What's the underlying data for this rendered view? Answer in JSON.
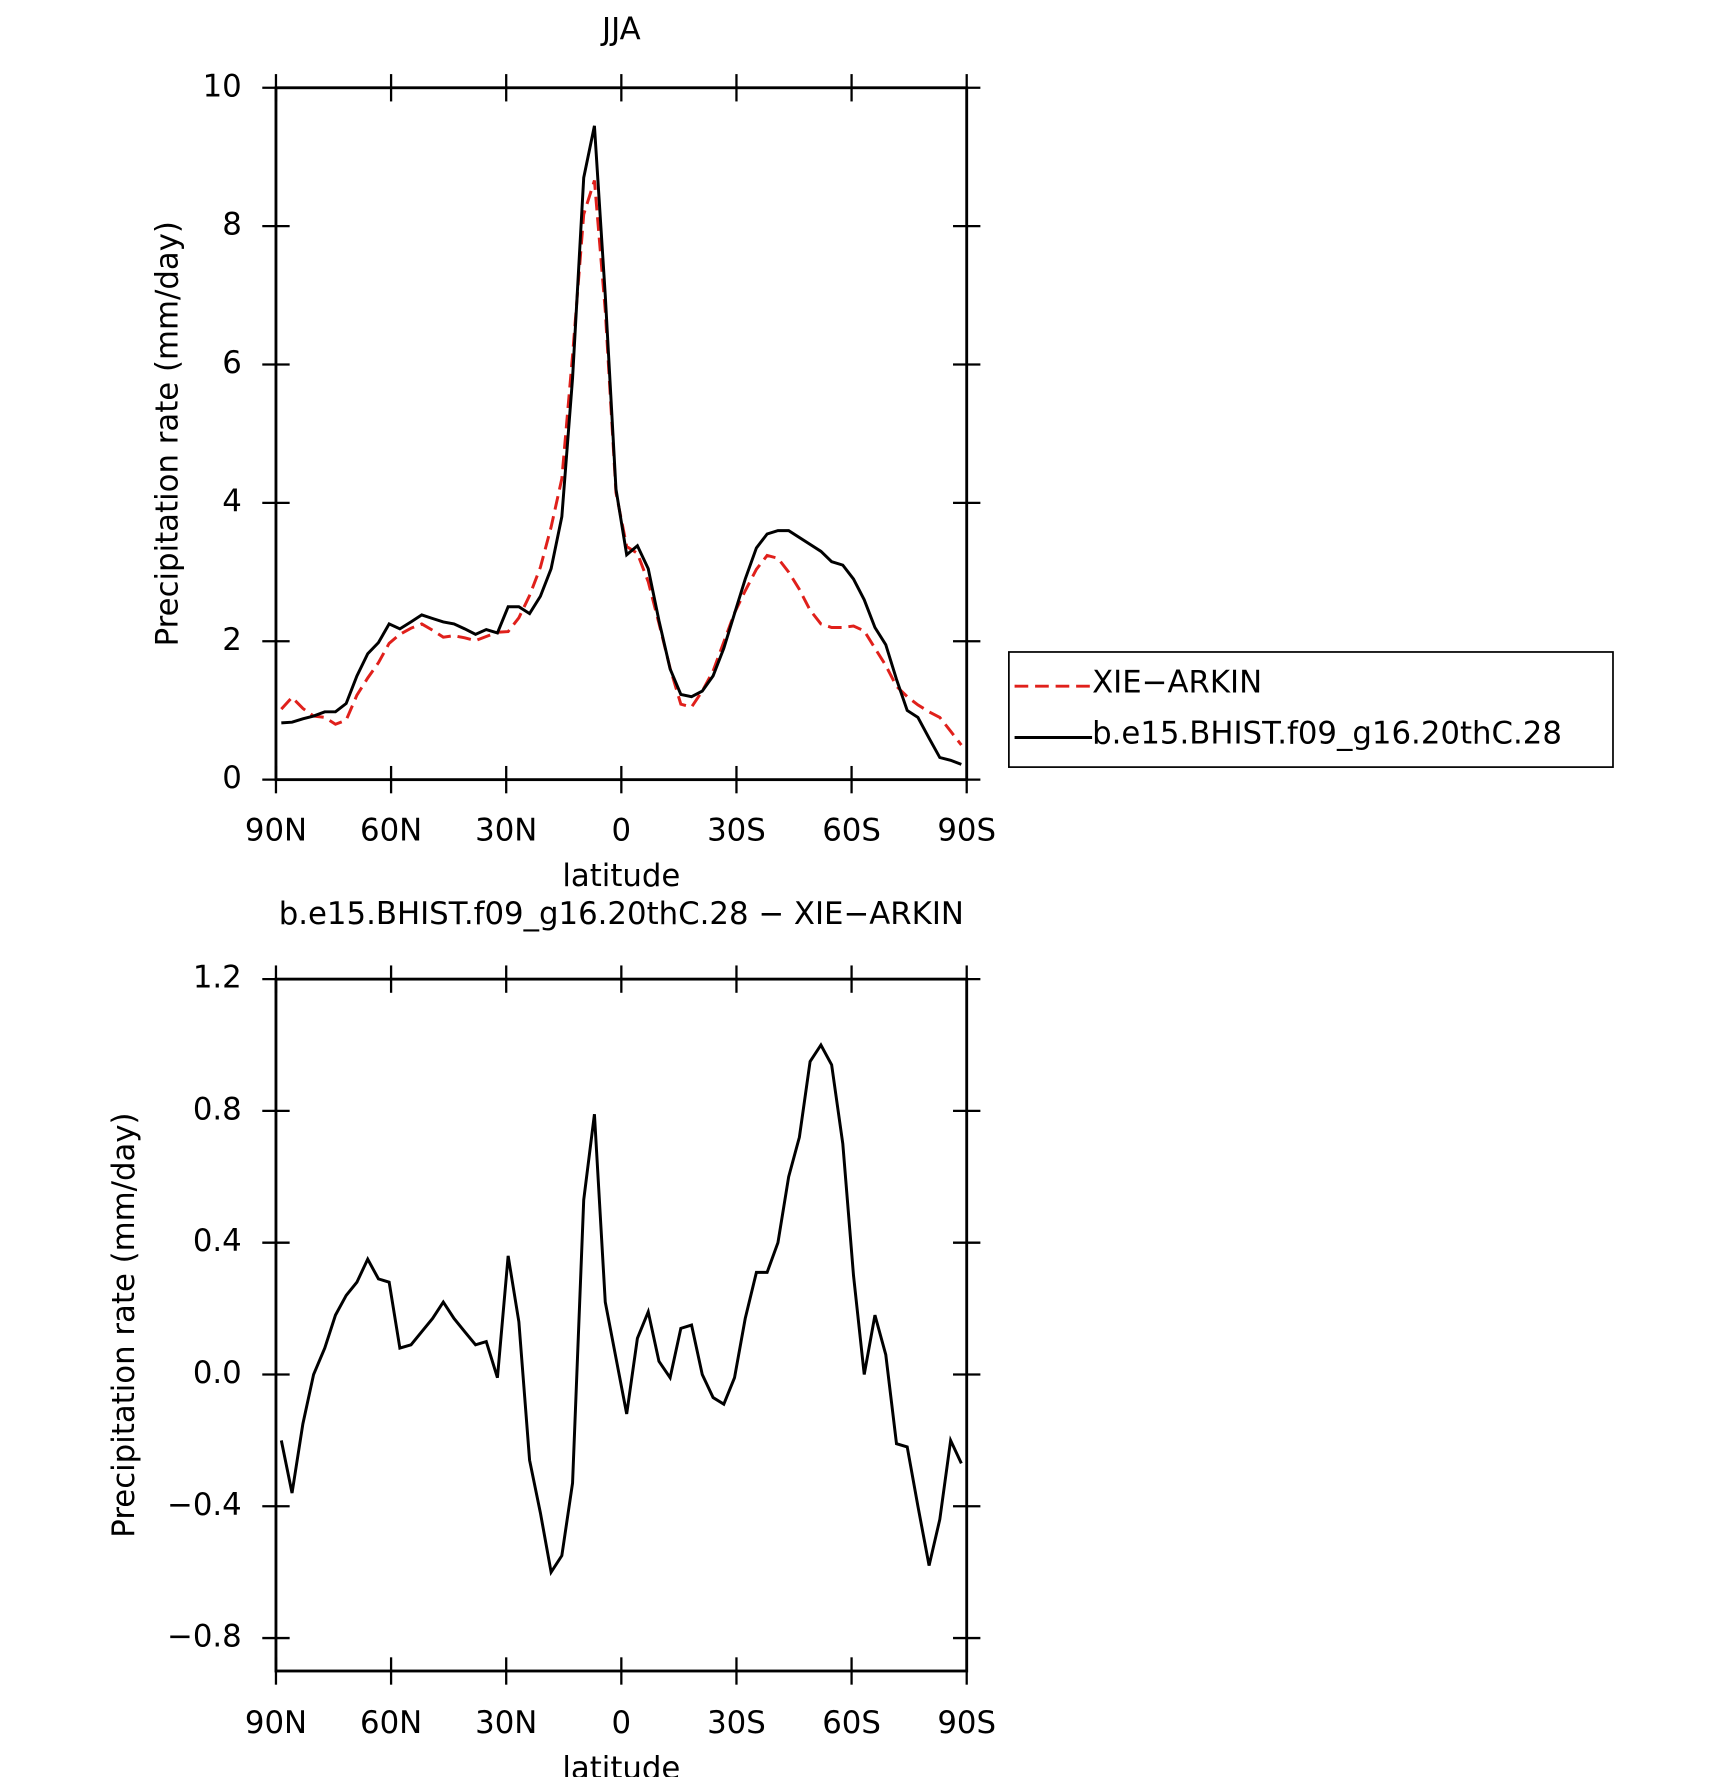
{
  "chart_data": [
    {
      "type": "line",
      "title": "JJA",
      "x_label": "latitude",
      "y_label": "Precipitation rate (mm/day)",
      "x": [
        88.6,
        85.8,
        83.0,
        80.2,
        77.3,
        74.5,
        71.7,
        68.9,
        66.1,
        63.3,
        60.5,
        57.7,
        54.8,
        52.0,
        49.2,
        46.4,
        43.6,
        40.8,
        38.0,
        35.2,
        32.3,
        29.5,
        26.7,
        23.9,
        21.1,
        18.3,
        15.5,
        12.7,
        9.8,
        7.0,
        4.2,
        1.4,
        -1.4,
        -4.2,
        -7.0,
        -9.8,
        -12.7,
        -15.5,
        -18.3,
        -21.1,
        -23.9,
        -26.7,
        -29.5,
        -32.3,
        -35.2,
        -38.0,
        -40.8,
        -43.6,
        -46.4,
        -49.2,
        -52.0,
        -54.8,
        -57.7,
        -60.5,
        -63.3,
        -66.1,
        -68.9,
        -71.7,
        -74.5,
        -77.3,
        -80.2,
        -83.0,
        -85.8,
        -88.6
      ],
      "series": [
        {
          "name": "XIE−ARKIN",
          "color": "#e0201b",
          "line_style": "dashed",
          "values": [
            1.02,
            1.19,
            1.03,
            0.92,
            0.9,
            0.8,
            0.86,
            1.22,
            1.47,
            1.69,
            1.97,
            2.1,
            2.19,
            2.25,
            2.16,
            2.06,
            2.08,
            2.05,
            2.01,
            2.07,
            2.13,
            2.14,
            2.34,
            2.66,
            3.07,
            3.65,
            4.35,
            6.13,
            8.17,
            8.66,
            6.78,
            4.15,
            3.37,
            3.27,
            2.86,
            2.26,
            1.61,
            1.09,
            1.05,
            1.28,
            1.57,
            1.99,
            2.41,
            2.73,
            3.04,
            3.24,
            3.2,
            3.0,
            2.75,
            2.45,
            2.25,
            2.2,
            2.2,
            2.22,
            2.15,
            1.9,
            1.65,
            1.35,
            1.2,
            1.08,
            0.98,
            0.9,
            0.7,
            0.5
          ]
        },
        {
          "name": "b.e15.BHIST.f09_g16.20thC.28",
          "color": "#000000",
          "line_style": "solid",
          "values": [
            0.82,
            0.83,
            0.88,
            0.92,
            0.98,
            0.98,
            1.1,
            1.5,
            1.82,
            1.98,
            2.25,
            2.18,
            2.28,
            2.38,
            2.33,
            2.28,
            2.25,
            2.18,
            2.1,
            2.17,
            2.12,
            2.5,
            2.5,
            2.4,
            2.65,
            3.05,
            3.8,
            5.8,
            8.7,
            9.45,
            7.0,
            4.2,
            3.25,
            3.38,
            3.05,
            2.3,
            1.6,
            1.23,
            1.2,
            1.28,
            1.5,
            1.9,
            2.4,
            2.9,
            3.35,
            3.55,
            3.6,
            3.6,
            3.5,
            3.4,
            3.3,
            3.15,
            3.1,
            2.9,
            2.6,
            2.2,
            1.95,
            1.45,
            1.0,
            0.9,
            0.6,
            0.32,
            0.28,
            0.22
          ]
        }
      ],
      "xlim": [
        90,
        -90
      ],
      "xticks": [
        {
          "value": 90,
          "label": "90N"
        },
        {
          "value": 60,
          "label": "60N"
        },
        {
          "value": 30,
          "label": "30N"
        },
        0,
        {
          "value": -30,
          "label": "30S"
        },
        {
          "value": -60,
          "label": "60S"
        },
        {
          "value": -90,
          "label": "90S"
        }
      ],
      "ylim": [
        0,
        10
      ],
      "yticks": [
        0,
        2,
        4,
        6,
        8,
        10
      ],
      "legend": "outside right"
    },
    {
      "type": "line",
      "title": "b.e15.BHIST.f09_g16.20thC.28 − XIE−ARKIN",
      "x_label": "latitude",
      "y_label": "Precipitation rate (mm/day)",
      "x": [
        88.6,
        85.8,
        83.0,
        80.2,
        77.3,
        74.5,
        71.7,
        68.9,
        66.1,
        63.3,
        60.5,
        57.7,
        54.8,
        52.0,
        49.2,
        46.4,
        43.6,
        40.8,
        38.0,
        35.2,
        32.3,
        29.5,
        26.7,
        23.9,
        21.1,
        18.3,
        15.5,
        12.7,
        9.8,
        7.0,
        4.2,
        1.4,
        -1.4,
        -4.2,
        -7.0,
        -9.8,
        -12.7,
        -15.5,
        -18.3,
        -21.1,
        -23.9,
        -26.7,
        -29.5,
        -32.3,
        -35.2,
        -38.0,
        -40.8,
        -43.6,
        -46.4,
        -49.2,
        -52.0,
        -54.8,
        -57.7,
        -60.5,
        -63.3,
        -66.1,
        -68.9,
        -71.7,
        -74.5,
        -77.3,
        -80.2,
        -83.0,
        -85.8,
        -88.6
      ],
      "series": [
        {
          "color": "#000000",
          "line_style": "solid",
          "values": [
            -0.2,
            -0.36,
            -0.15,
            0.0,
            0.08,
            0.18,
            0.24,
            0.28,
            0.35,
            0.29,
            0.28,
            0.08,
            0.09,
            0.13,
            0.17,
            0.22,
            0.17,
            0.13,
            0.09,
            0.1,
            -0.01,
            0.36,
            0.16,
            -0.26,
            -0.42,
            -0.6,
            -0.55,
            -0.33,
            0.53,
            0.79,
            0.22,
            0.05,
            -0.12,
            0.11,
            0.19,
            0.04,
            -0.01,
            0.14,
            0.15,
            0.0,
            -0.07,
            -0.09,
            -0.01,
            0.17,
            0.31,
            0.31,
            0.4,
            0.6,
            0.72,
            0.95,
            1.0,
            0.94,
            0.7,
            0.3,
            0.0,
            0.18,
            0.06,
            -0.21,
            -0.22,
            -0.4,
            -0.58,
            -0.44,
            -0.2,
            -0.27
          ]
        }
      ],
      "xlim": [
        90,
        -90
      ],
      "xticks": [
        {
          "value": 90,
          "label": "90N"
        },
        {
          "value": 60,
          "label": "60N"
        },
        {
          "value": 30,
          "label": "30N"
        },
        0,
        {
          "value": -30,
          "label": "30S"
        },
        {
          "value": -60,
          "label": "60S"
        },
        {
          "value": -90,
          "label": "90S"
        }
      ],
      "ylim": [
        -0.9,
        1.2
      ],
      "yticks": [
        {
          "value": -0.8,
          "label": "−0.8"
        },
        {
          "value": -0.4,
          "label": "−0.4"
        },
        {
          "value": 0,
          "label": "0.0"
        },
        0.4,
        0.8,
        1.2
      ]
    }
  ]
}
